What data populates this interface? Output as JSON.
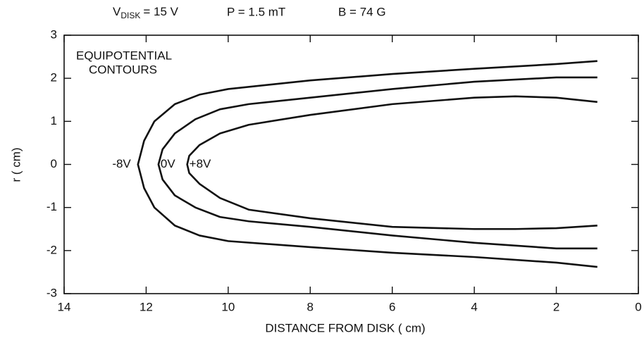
{
  "chart_data": {
    "type": "line",
    "title": [
      "V",
      "DISK",
      "= 15 V",
      "P = 1.5 mT",
      "B = 74 G"
    ],
    "annotations": [
      "EQUIPOTENTIAL",
      "CONTOURS"
    ],
    "xlabel": "DISTANCE FROM DISK ( cm)",
    "ylabel": "r ( cm)",
    "xlim": [
      14,
      0
    ],
    "ylim": [
      -3,
      3
    ],
    "xticks": [
      14,
      12,
      10,
      8,
      6,
      4,
      2,
      0
    ],
    "yticks": [
      -3,
      -2,
      -1,
      0,
      1,
      2,
      3
    ],
    "color": "#111111",
    "series": [
      {
        "name": "-8V",
        "x": [
          1,
          2,
          4,
          6,
          8,
          9,
          10,
          10.7,
          11.3,
          11.8,
          12.05,
          12.2,
          12.05,
          11.8,
          11.3,
          10.7,
          10,
          8,
          6,
          4,
          2,
          1
        ],
        "values": [
          2.4,
          2.33,
          2.22,
          2.1,
          1.95,
          1.85,
          1.75,
          1.62,
          1.4,
          1.0,
          0.55,
          0,
          -0.55,
          -1.0,
          -1.42,
          -1.65,
          -1.78,
          -1.92,
          -2.05,
          -2.15,
          -2.28,
          -2.38
        ]
      },
      {
        "name": "0V",
        "x": [
          1,
          2,
          4,
          6,
          8,
          9.5,
          10.2,
          10.8,
          11.3,
          11.6,
          11.7,
          11.6,
          11.3,
          10.8,
          10.2,
          9.5,
          8,
          6,
          4,
          2,
          1
        ],
        "values": [
          2.02,
          2.02,
          1.92,
          1.75,
          1.55,
          1.4,
          1.28,
          1.05,
          0.72,
          0.35,
          0,
          -0.35,
          -0.72,
          -1.0,
          -1.22,
          -1.32,
          -1.45,
          -1.65,
          -1.82,
          -1.95,
          -1.95
        ]
      },
      {
        "name": "+8V",
        "x": [
          1,
          2,
          3,
          4,
          6,
          8,
          9.5,
          10.2,
          10.7,
          10.95,
          11.0,
          10.95,
          10.7,
          10.2,
          9.5,
          8,
          6,
          4,
          3,
          2,
          1
        ],
        "values": [
          1.45,
          1.55,
          1.58,
          1.55,
          1.4,
          1.15,
          0.92,
          0.72,
          0.45,
          0.2,
          0,
          -0.2,
          -0.45,
          -0.78,
          -1.05,
          -1.25,
          -1.45,
          -1.5,
          -1.5,
          -1.48,
          -1.42
        ]
      }
    ]
  }
}
